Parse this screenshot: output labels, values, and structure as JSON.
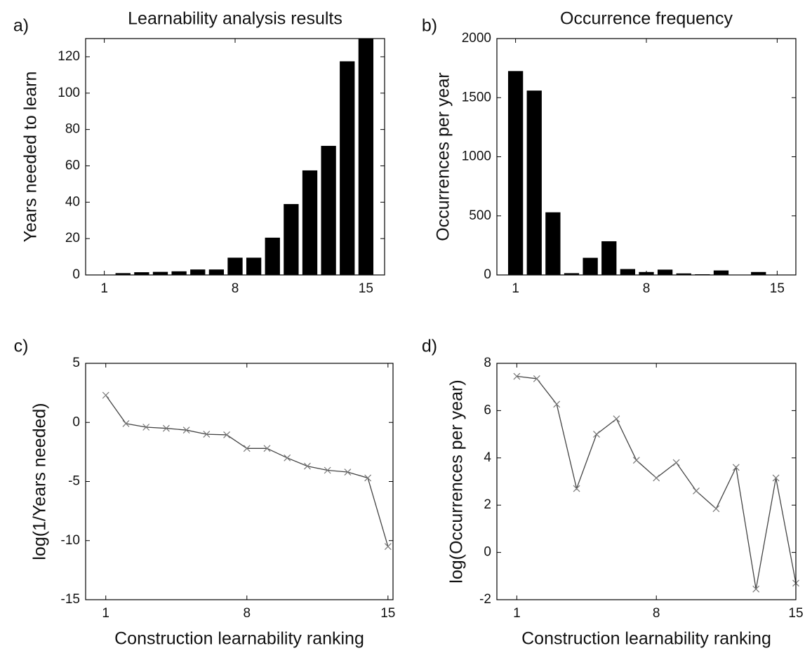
{
  "chart_data": [
    {
      "type": "bar",
      "label": "a)",
      "title": "Learnability analysis results",
      "y_label": "Years needed to learn",
      "color": "#000000",
      "x": [
        1,
        2,
        3,
        4,
        5,
        6,
        7,
        8,
        9,
        10,
        11,
        12,
        13,
        14,
        15
      ],
      "values": [
        0.1,
        1,
        1.5,
        1.7,
        2,
        3,
        3,
        9.5,
        9.5,
        20.5,
        39,
        57.5,
        71,
        117.5,
        130
      ],
      "xlim": [
        0,
        16
      ],
      "xticks": [
        1,
        8,
        15
      ],
      "ylim": [
        0,
        130
      ],
      "yticks": [
        0,
        20,
        40,
        60,
        80,
        100,
        120
      ]
    },
    {
      "type": "bar",
      "label": "b)",
      "title": "Occurrence frequency",
      "y_label": "Occurrences per year",
      "color": "#000000",
      "x": [
        1,
        2,
        3,
        4,
        5,
        6,
        7,
        8,
        9,
        10,
        11,
        12,
        13,
        14,
        15
      ],
      "values": [
        1725,
        1560,
        530,
        15,
        145,
        285,
        50,
        25,
        45,
        13,
        6,
        38,
        0.2,
        25,
        0.3
      ],
      "xlim": [
        0,
        16
      ],
      "xticks": [
        1,
        8,
        15
      ],
      "ylim": [
        0,
        2000
      ],
      "yticks": [
        0,
        500,
        1000,
        1500,
        2000
      ]
    },
    {
      "type": "line",
      "label": "c)",
      "y_label": "log(1/Years needed)",
      "x_label": "Construction learnability ranking",
      "color": "#444444",
      "x": [
        1,
        2,
        3,
        4,
        5,
        6,
        7,
        8,
        9,
        10,
        11,
        12,
        13,
        14,
        15
      ],
      "values": [
        2.3,
        -0.1,
        -0.4,
        -0.5,
        -0.65,
        -1.0,
        -1.05,
        -2.2,
        -2.2,
        -3.0,
        -3.7,
        -4.05,
        -4.2,
        -4.7,
        -10.5
      ],
      "xlim": [
        0,
        15.25
      ],
      "xticks": [
        1,
        8,
        15
      ],
      "ylim": [
        -15,
        5
      ],
      "yticks": [
        -15,
        -10,
        -5,
        0,
        5
      ]
    },
    {
      "type": "line",
      "label": "d)",
      "y_label": "log(Occurrences per year)",
      "x_label": "Construction learnability ranking",
      "color": "#444444",
      "x": [
        1,
        2,
        3,
        4,
        5,
        6,
        7,
        8,
        9,
        10,
        11,
        12,
        13,
        14,
        15
      ],
      "values": [
        7.45,
        7.35,
        6.27,
        2.7,
        5.0,
        5.65,
        3.9,
        3.15,
        3.8,
        2.6,
        1.85,
        3.6,
        -1.55,
        3.15,
        -1.3
      ],
      "xlim": [
        0,
        15
      ],
      "xticks": [
        1,
        8,
        15
      ],
      "ylim": [
        -2,
        8
      ],
      "yticks": [
        -2,
        0,
        2,
        4,
        6,
        8
      ]
    }
  ]
}
